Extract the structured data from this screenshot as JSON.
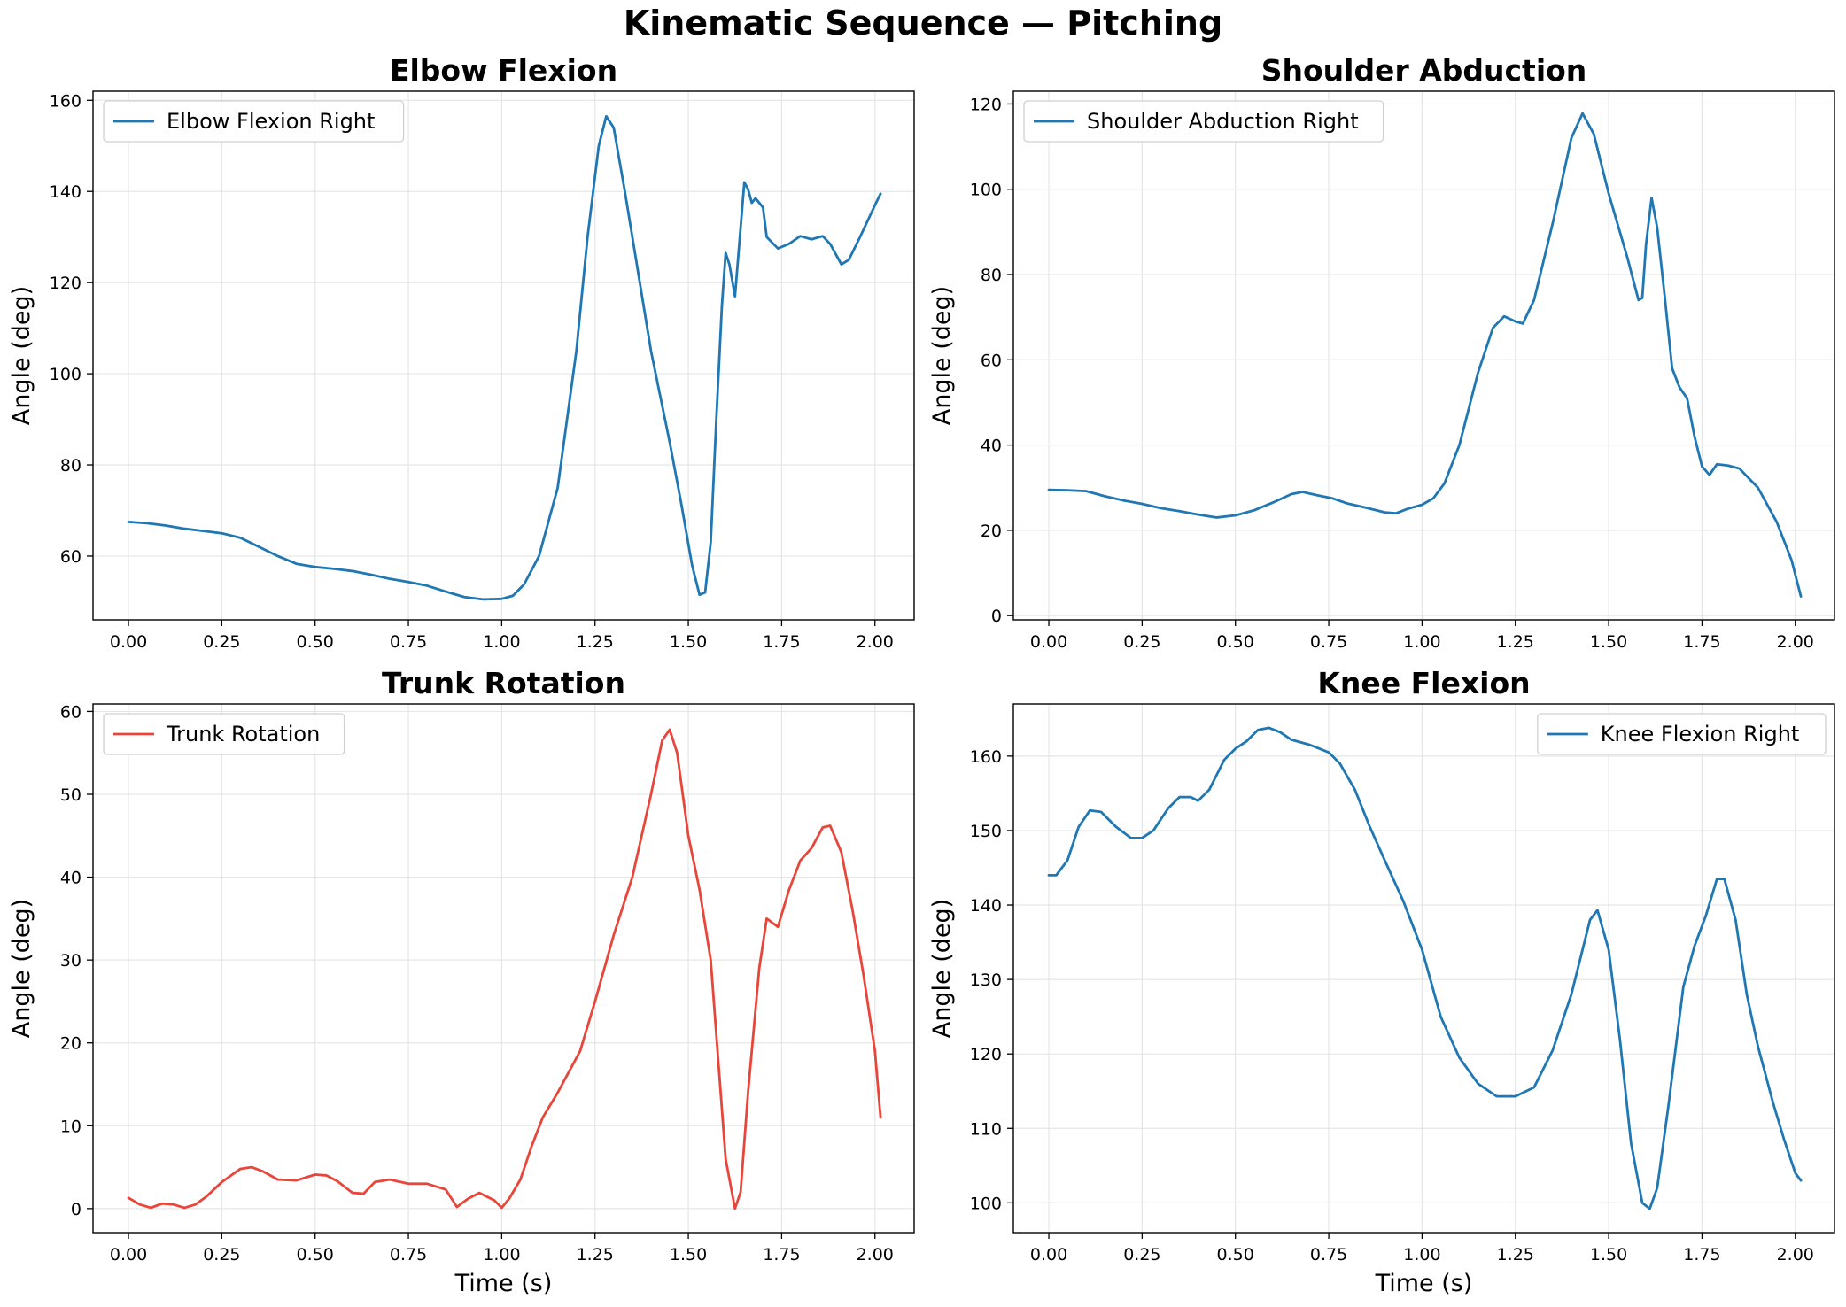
{
  "figure_title": "Kinematic Sequence — Pitching",
  "chart_data": [
    {
      "type": "line",
      "title": "Elbow Flexion",
      "xlabel": "",
      "ylabel": "Angle (deg)",
      "xlim": [
        -0.095,
        2.105
      ],
      "ylim": [
        46,
        162
      ],
      "xticks": [
        "0.00",
        "0.25",
        "0.50",
        "0.75",
        "1.00",
        "1.25",
        "1.50",
        "1.75",
        "2.00"
      ],
      "yticks": [
        "60",
        "80",
        "100",
        "120",
        "140",
        "160"
      ],
      "grid": true,
      "legend_position": "top-left",
      "series": [
        {
          "name": "Elbow Flexion Right",
          "color": "#1f77b4",
          "points": [
            [
              0.0,
              67.5
            ],
            [
              0.05,
              67.2
            ],
            [
              0.1,
              66.7
            ],
            [
              0.15,
              66.0
            ],
            [
              0.2,
              65.5
            ],
            [
              0.25,
              65.0
            ],
            [
              0.3,
              64.0
            ],
            [
              0.35,
              62.0
            ],
            [
              0.4,
              60.0
            ],
            [
              0.45,
              58.3
            ],
            [
              0.5,
              57.6
            ],
            [
              0.55,
              57.2
            ],
            [
              0.6,
              56.7
            ],
            [
              0.65,
              55.9
            ],
            [
              0.7,
              55.0
            ],
            [
              0.75,
              54.3
            ],
            [
              0.8,
              53.5
            ],
            [
              0.85,
              52.2
            ],
            [
              0.9,
              51.0
            ],
            [
              0.95,
              50.5
            ],
            [
              1.0,
              50.6
            ],
            [
              1.03,
              51.3
            ],
            [
              1.06,
              53.8
            ],
            [
              1.1,
              60.0
            ],
            [
              1.15,
              75.0
            ],
            [
              1.2,
              105.0
            ],
            [
              1.23,
              130.0
            ],
            [
              1.26,
              150.0
            ],
            [
              1.28,
              156.5
            ],
            [
              1.3,
              154.0
            ],
            [
              1.33,
              140.0
            ],
            [
              1.37,
              120.0
            ],
            [
              1.4,
              105.0
            ],
            [
              1.45,
              85.0
            ],
            [
              1.48,
              72.0
            ],
            [
              1.51,
              58.0
            ],
            [
              1.53,
              51.5
            ],
            [
              1.545,
              52.0
            ],
            [
              1.56,
              63.0
            ],
            [
              1.575,
              90.0
            ],
            [
              1.59,
              115.0
            ],
            [
              1.6,
              126.5
            ],
            [
              1.61,
              124.0
            ],
            [
              1.625,
              117.0
            ],
            [
              1.64,
              132.0
            ],
            [
              1.65,
              142.0
            ],
            [
              1.66,
              140.5
            ],
            [
              1.67,
              137.5
            ],
            [
              1.68,
              138.5
            ],
            [
              1.7,
              136.5
            ],
            [
              1.71,
              130.0
            ],
            [
              1.74,
              127.5
            ],
            [
              1.77,
              128.5
            ],
            [
              1.8,
              130.2
            ],
            [
              1.83,
              129.5
            ],
            [
              1.86,
              130.2
            ],
            [
              1.88,
              128.5
            ],
            [
              1.91,
              124.0
            ],
            [
              1.93,
              125.0
            ],
            [
              1.96,
              130.0
            ],
            [
              2.0,
              137.0
            ],
            [
              2.015,
              139.5
            ]
          ]
        }
      ]
    },
    {
      "type": "line",
      "title": "Shoulder Abduction",
      "xlabel": "",
      "ylabel": "Angle (deg)",
      "xlim": [
        -0.095,
        2.105
      ],
      "ylim": [
        -1,
        123
      ],
      "xticks": [
        "0.00",
        "0.25",
        "0.50",
        "0.75",
        "1.00",
        "1.25",
        "1.50",
        "1.75",
        "2.00"
      ],
      "yticks": [
        "0",
        "20",
        "40",
        "60",
        "80",
        "100",
        "120"
      ],
      "grid": true,
      "legend_position": "top-left",
      "series": [
        {
          "name": "Shoulder Abduction Right",
          "color": "#1f77b4",
          "points": [
            [
              0.0,
              29.5
            ],
            [
              0.05,
              29.4
            ],
            [
              0.1,
              29.2
            ],
            [
              0.15,
              28.0
            ],
            [
              0.2,
              27.0
            ],
            [
              0.25,
              26.2
            ],
            [
              0.3,
              25.2
            ],
            [
              0.35,
              24.5
            ],
            [
              0.4,
              23.7
            ],
            [
              0.45,
              23.0
            ],
            [
              0.5,
              23.5
            ],
            [
              0.55,
              24.7
            ],
            [
              0.6,
              26.5
            ],
            [
              0.65,
              28.5
            ],
            [
              0.68,
              29.0
            ],
            [
              0.72,
              28.2
            ],
            [
              0.76,
              27.5
            ],
            [
              0.8,
              26.3
            ],
            [
              0.85,
              25.3
            ],
            [
              0.9,
              24.2
            ],
            [
              0.93,
              24.0
            ],
            [
              0.96,
              25.0
            ],
            [
              1.0,
              26.0
            ],
            [
              1.03,
              27.5
            ],
            [
              1.06,
              31.0
            ],
            [
              1.1,
              40.0
            ],
            [
              1.15,
              57.0
            ],
            [
              1.19,
              67.5
            ],
            [
              1.22,
              70.2
            ],
            [
              1.25,
              69.0
            ],
            [
              1.27,
              68.5
            ],
            [
              1.3,
              74.0
            ],
            [
              1.35,
              92.0
            ],
            [
              1.4,
              112.0
            ],
            [
              1.43,
              117.8
            ],
            [
              1.46,
              113.0
            ],
            [
              1.5,
              99.0
            ],
            [
              1.55,
              84.0
            ],
            [
              1.58,
              74.0
            ],
            [
              1.59,
              74.5
            ],
            [
              1.6,
              87.0
            ],
            [
              1.615,
              98.0
            ],
            [
              1.63,
              91.0
            ],
            [
              1.65,
              75.0
            ],
            [
              1.67,
              58.0
            ],
            [
              1.69,
              53.5
            ],
            [
              1.71,
              51.0
            ],
            [
              1.73,
              42.0
            ],
            [
              1.75,
              35.0
            ],
            [
              1.77,
              33.0
            ],
            [
              1.79,
              35.5
            ],
            [
              1.82,
              35.2
            ],
            [
              1.85,
              34.5
            ],
            [
              1.9,
              30.0
            ],
            [
              1.95,
              22.0
            ],
            [
              1.99,
              13.0
            ],
            [
              2.015,
              4.5
            ]
          ]
        }
      ]
    },
    {
      "type": "line",
      "title": "Trunk Rotation",
      "xlabel": "Time (s)",
      "ylabel": "Angle (deg)",
      "xlim": [
        -0.095,
        2.105
      ],
      "ylim": [
        -2.9,
        60.9
      ],
      "xticks": [
        "0.00",
        "0.25",
        "0.50",
        "0.75",
        "1.00",
        "1.25",
        "1.50",
        "1.75",
        "2.00"
      ],
      "yticks": [
        "0",
        "10",
        "20",
        "30",
        "40",
        "50",
        "60"
      ],
      "grid": true,
      "legend_position": "top-left",
      "series": [
        {
          "name": "Trunk Rotation",
          "color": "#e8463a",
          "points": [
            [
              0.0,
              1.3
            ],
            [
              0.03,
              0.5
            ],
            [
              0.06,
              0.1
            ],
            [
              0.09,
              0.6
            ],
            [
              0.12,
              0.5
            ],
            [
              0.15,
              0.1
            ],
            [
              0.18,
              0.5
            ],
            [
              0.21,
              1.5
            ],
            [
              0.25,
              3.2
            ],
            [
              0.3,
              4.8
            ],
            [
              0.33,
              5.0
            ],
            [
              0.36,
              4.5
            ],
            [
              0.4,
              3.5
            ],
            [
              0.45,
              3.4
            ],
            [
              0.5,
              4.1
            ],
            [
              0.53,
              4.0
            ],
            [
              0.56,
              3.3
            ],
            [
              0.6,
              1.9
            ],
            [
              0.63,
              1.8
            ],
            [
              0.66,
              3.2
            ],
            [
              0.7,
              3.5
            ],
            [
              0.75,
              3.0
            ],
            [
              0.8,
              3.0
            ],
            [
              0.85,
              2.3
            ],
            [
              0.88,
              0.2
            ],
            [
              0.91,
              1.2
            ],
            [
              0.94,
              1.9
            ],
            [
              0.98,
              1.0
            ],
            [
              1.0,
              0.1
            ],
            [
              1.02,
              1.2
            ],
            [
              1.05,
              3.5
            ],
            [
              1.08,
              7.5
            ],
            [
              1.11,
              11.0
            ],
            [
              1.15,
              14.0
            ],
            [
              1.18,
              16.5
            ],
            [
              1.21,
              19.0
            ],
            [
              1.25,
              25.0
            ],
            [
              1.3,
              33.0
            ],
            [
              1.35,
              40.0
            ],
            [
              1.4,
              50.0
            ],
            [
              1.43,
              56.5
            ],
            [
              1.45,
              57.8
            ],
            [
              1.47,
              55.0
            ],
            [
              1.5,
              45.0
            ],
            [
              1.53,
              38.5
            ],
            [
              1.56,
              30.0
            ],
            [
              1.58,
              18.0
            ],
            [
              1.6,
              6.0
            ],
            [
              1.625,
              0.0
            ],
            [
              1.64,
              2.0
            ],
            [
              1.66,
              14.0
            ],
            [
              1.69,
              29.0
            ],
            [
              1.71,
              35.0
            ],
            [
              1.74,
              34.0
            ],
            [
              1.77,
              38.5
            ],
            [
              1.8,
              42.0
            ],
            [
              1.83,
              43.5
            ],
            [
              1.86,
              46.0
            ],
            [
              1.88,
              46.2
            ],
            [
              1.91,
              43.0
            ],
            [
              1.94,
              36.0
            ],
            [
              1.97,
              28.0
            ],
            [
              2.0,
              19.0
            ],
            [
              2.015,
              11.0
            ]
          ]
        }
      ]
    },
    {
      "type": "line",
      "title": "Knee Flexion",
      "xlabel": "Time (s)",
      "ylabel": "Angle (deg)",
      "xlim": [
        -0.095,
        2.105
      ],
      "ylim": [
        96,
        167
      ],
      "xticks": [
        "0.00",
        "0.25",
        "0.50",
        "0.75",
        "1.00",
        "1.25",
        "1.50",
        "1.75",
        "2.00"
      ],
      "yticks": [
        "100",
        "110",
        "120",
        "130",
        "140",
        "150",
        "160"
      ],
      "grid": true,
      "legend_position": "top-right",
      "series": [
        {
          "name": "Knee Flexion Right",
          "color": "#1f77b4",
          "points": [
            [
              0.0,
              144.0
            ],
            [
              0.02,
              144.0
            ],
            [
              0.05,
              146.0
            ],
            [
              0.08,
              150.5
            ],
            [
              0.11,
              152.7
            ],
            [
              0.14,
              152.5
            ],
            [
              0.18,
              150.5
            ],
            [
              0.22,
              149.0
            ],
            [
              0.25,
              149.0
            ],
            [
              0.28,
              150.0
            ],
            [
              0.32,
              153.0
            ],
            [
              0.35,
              154.5
            ],
            [
              0.38,
              154.5
            ],
            [
              0.4,
              154.0
            ],
            [
              0.43,
              155.5
            ],
            [
              0.47,
              159.5
            ],
            [
              0.5,
              161.0
            ],
            [
              0.53,
              162.0
            ],
            [
              0.56,
              163.5
            ],
            [
              0.59,
              163.8
            ],
            [
              0.62,
              163.2
            ],
            [
              0.65,
              162.2
            ],
            [
              0.7,
              161.5
            ],
            [
              0.75,
              160.5
            ],
            [
              0.78,
              159.0
            ],
            [
              0.82,
              155.5
            ],
            [
              0.86,
              150.5
            ],
            [
              0.9,
              146.0
            ],
            [
              0.95,
              140.5
            ],
            [
              1.0,
              134.0
            ],
            [
              1.05,
              125.0
            ],
            [
              1.1,
              119.5
            ],
            [
              1.15,
              116.0
            ],
            [
              1.2,
              114.3
            ],
            [
              1.25,
              114.3
            ],
            [
              1.3,
              115.5
            ],
            [
              1.35,
              120.5
            ],
            [
              1.4,
              128.0
            ],
            [
              1.45,
              138.0
            ],
            [
              1.47,
              139.3
            ],
            [
              1.5,
              134.0
            ],
            [
              1.53,
              122.0
            ],
            [
              1.56,
              108.0
            ],
            [
              1.59,
              100.0
            ],
            [
              1.61,
              99.2
            ],
            [
              1.63,
              102.0
            ],
            [
              1.66,
              113.0
            ],
            [
              1.7,
              129.0
            ],
            [
              1.73,
              134.5
            ],
            [
              1.76,
              138.5
            ],
            [
              1.79,
              143.5
            ],
            [
              1.81,
              143.5
            ],
            [
              1.84,
              138.0
            ],
            [
              1.87,
              128.0
            ],
            [
              1.9,
              121.0
            ],
            [
              1.94,
              113.5
            ],
            [
              1.97,
              108.5
            ],
            [
              2.0,
              104.0
            ],
            [
              2.015,
              103.0
            ]
          ]
        }
      ]
    }
  ]
}
